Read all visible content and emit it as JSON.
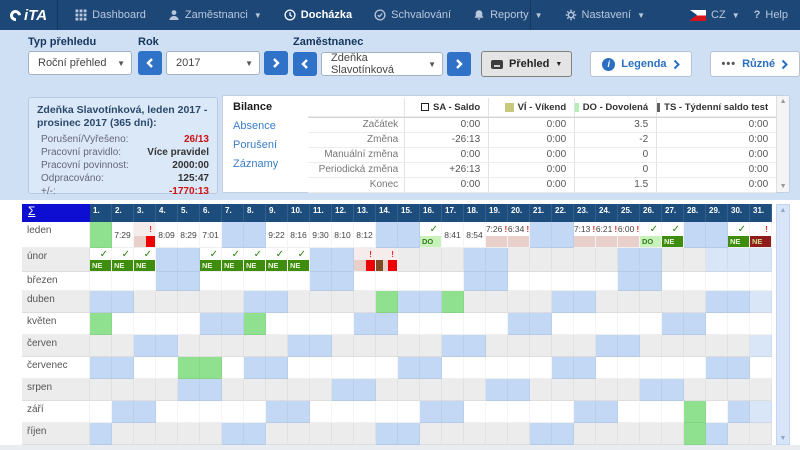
{
  "navbar": {
    "logo_text": "iTA",
    "items": [
      {
        "label": "Dashboard",
        "icon": "grid-icon",
        "active": false,
        "caret": false
      },
      {
        "label": "Zaměstnanci",
        "icon": "user-icon",
        "active": false,
        "caret": true
      },
      {
        "label": "Docházka",
        "icon": "clock-icon",
        "active": true,
        "caret": false
      },
      {
        "label": "Schvalování",
        "icon": "check-circle-icon",
        "active": false,
        "caret": false
      },
      {
        "label": "Reporty",
        "icon": "bell-icon",
        "active": false,
        "caret": true
      },
      {
        "label": "Nastavení",
        "icon": "gear-icon",
        "active": false,
        "caret": true
      }
    ],
    "lang": "CZ",
    "help_label": "Help"
  },
  "filters": {
    "type": {
      "label": "Typ přehledu",
      "value": "Roční přehled"
    },
    "year": {
      "label": "Rok",
      "value": "2017"
    },
    "employee": {
      "label": "Zaměstnanec",
      "value": "Zdeňka Slavotínková"
    },
    "buttons": {
      "prehled": "Přehled",
      "legenda": "Legenda",
      "ruzne": "Různé"
    }
  },
  "summary": {
    "title": "Zdeňka Slavotínková, leden 2017 - prosinec 2017 (365 dní):",
    "rows": [
      {
        "label": "Porušení/Vyřešeno:",
        "value": "26/13",
        "red": true
      },
      {
        "label": "Pracovní pravidlo:",
        "value": "Více pravidel",
        "red": false
      },
      {
        "label": "Pracovní povinnost:",
        "value": "2000:00",
        "red": false
      },
      {
        "label": "Odpracováno:",
        "value": "125:47",
        "red": false
      },
      {
        "label": "+/-:",
        "value": "-1770:13",
        "red": true
      }
    ]
  },
  "balance": {
    "tabs": [
      "Bilance",
      "Absence",
      "Porušení",
      "Záznamy"
    ],
    "active_tab": "Bilance",
    "columns": [
      {
        "label": "SA - Saldo",
        "color": "#ffffff"
      },
      {
        "label": "VÍ - Víkend",
        "color": "#c9c97e"
      },
      {
        "label": "DO - Dovolená",
        "color": "#b5efb5"
      },
      {
        "label": "TS - Týdenní saldo test",
        "color": "#5f5f5f"
      }
    ],
    "rows": [
      {
        "label": "Začátek",
        "values": [
          "0:00",
          "0:00",
          "3.5",
          "0:00"
        ]
      },
      {
        "label": "Změna",
        "values": [
          "-26:13",
          "0:00",
          "-2",
          "0:00"
        ]
      },
      {
        "label": "Manuální změna",
        "values": [
          "0:00",
          "0:00",
          "0",
          "0:00"
        ]
      },
      {
        "label": "Periodická změna",
        "values": [
          "+26:13",
          "0:00",
          "0",
          "0:00"
        ]
      },
      {
        "label": "Konec",
        "values": [
          "0:00",
          "0:00",
          "1.5",
          "0:00"
        ]
      }
    ]
  },
  "calendar": {
    "sigma": "Σ",
    "num_days": 31,
    "colors": {
      "weekend": "#c3d8f4",
      "holiday": "#8fe08f",
      "row_alt": "#ececec",
      "invalid": "#d9e6f7",
      "pink": "#e8cfca",
      "red": "#ee0000",
      "brown": "#7d4a21",
      "ne_green": "#3f8d0e",
      "do_green": "#c9f2bb",
      "ne_red": "#8f1d1d"
    },
    "months": [
      {
        "name": "leden",
        "two_line": true,
        "shade": "white",
        "weekends": [
          7,
          8,
          14,
          15,
          21,
          22,
          28,
          29
        ],
        "holidays": [
          1
        ],
        "invalid": [],
        "days": {
          "2": {
            "t": "7:29"
          },
          "3": {
            "bang": true,
            "alert": true,
            "band": [
              [
                "pink",
                55
              ],
              [
                "red",
                45
              ]
            ]
          },
          "4": {
            "t": "8:09"
          },
          "5": {
            "t": "8:29"
          },
          "6": {
            "t": "7:01"
          },
          "9": {
            "t": "9:22"
          },
          "10": {
            "t": "8:16"
          },
          "11": {
            "t": "9:30"
          },
          "12": {
            "t": "8:10"
          },
          "13": {
            "t": "8:12"
          },
          "16": {
            "check": true,
            "band": "DO"
          },
          "17": {
            "t": "8:41"
          },
          "18": {
            "t": "8:54"
          },
          "19": {
            "t": "7:26",
            "bang": true,
            "band": "PINK"
          },
          "20": {
            "t": "6:34",
            "bang": true,
            "band": "PINK"
          },
          "23": {
            "t": "7:13",
            "bang": true,
            "band": "PINK"
          },
          "24": {
            "t": "6:21",
            "bang": true,
            "band": "PINK"
          },
          "25": {
            "t": "6:00",
            "bang": true,
            "band": "PINK"
          },
          "26": {
            "check": true,
            "band": "DO"
          },
          "27": {
            "check": true,
            "band": "NE"
          },
          "30": {
            "check": true,
            "band": "NE"
          },
          "31": {
            "bang": true,
            "band": "NERED"
          }
        }
      },
      {
        "name": "únor",
        "two_line": true,
        "shade": "gray",
        "weekends": [
          4,
          5,
          11,
          12,
          18,
          19,
          25,
          26
        ],
        "holidays": [],
        "invalid": [
          29,
          30,
          31
        ],
        "days": {
          "1": {
            "check": true,
            "band": "NE"
          },
          "2": {
            "check": true,
            "band": "NE"
          },
          "3": {
            "check": true,
            "band": "NE"
          },
          "6": {
            "check": true,
            "band": "NE"
          },
          "7": {
            "check": true,
            "band": "NE"
          },
          "8": {
            "check": true,
            "band": "NE"
          },
          "9": {
            "check": true,
            "band": "NE"
          },
          "10": {
            "check": true,
            "band": "NE"
          },
          "13": {
            "bang": true,
            "alert": true,
            "band": [
              [
                "pink",
                58
              ],
              [
                "red",
                42
              ]
            ]
          },
          "14": {
            "bang": true,
            "alert": true,
            "band": [
              [
                "brown",
                34
              ],
              [
                "pink",
                24
              ],
              [
                "red",
                42
              ]
            ]
          }
        }
      },
      {
        "name": "březen",
        "two_line": false,
        "shade": "white",
        "weekends": [
          4,
          5,
          11,
          12,
          18,
          19,
          25,
          26
        ],
        "holidays": [],
        "invalid": [],
        "days": {}
      },
      {
        "name": "duben",
        "two_line": false,
        "shade": "gray",
        "weekends": [
          1,
          2,
          8,
          9,
          15,
          16,
          22,
          23,
          29,
          30
        ],
        "holidays": [
          14,
          17
        ],
        "invalid": [
          31
        ],
        "days": {}
      },
      {
        "name": "květen",
        "two_line": false,
        "shade": "white",
        "weekends": [
          6,
          7,
          13,
          14,
          20,
          21,
          27,
          28
        ],
        "holidays": [
          1,
          8
        ],
        "invalid": [],
        "days": {}
      },
      {
        "name": "červen",
        "two_line": false,
        "shade": "gray",
        "weekends": [
          3,
          4,
          10,
          11,
          17,
          18,
          24,
          25
        ],
        "holidays": [],
        "invalid": [
          31
        ],
        "days": {}
      },
      {
        "name": "červenec",
        "two_line": false,
        "shade": "white",
        "weekends": [
          1,
          2,
          8,
          9,
          15,
          16,
          22,
          23,
          29,
          30
        ],
        "holidays": [
          5,
          6
        ],
        "invalid": [],
        "days": {}
      },
      {
        "name": "srpen",
        "two_line": false,
        "shade": "gray",
        "weekends": [
          5,
          6,
          12,
          13,
          19,
          20,
          26,
          27
        ],
        "holidays": [],
        "invalid": [],
        "days": {}
      },
      {
        "name": "září",
        "two_line": false,
        "shade": "white",
        "weekends": [
          2,
          3,
          9,
          10,
          16,
          17,
          23,
          24,
          30
        ],
        "holidays": [
          28
        ],
        "invalid": [
          31
        ],
        "days": {}
      },
      {
        "name": "říjen",
        "two_line": false,
        "shade": "gray",
        "weekends": [
          1,
          7,
          8,
          14,
          15,
          21,
          22,
          29
        ],
        "holidays": [
          28
        ],
        "invalid": [],
        "days": {}
      }
    ]
  }
}
